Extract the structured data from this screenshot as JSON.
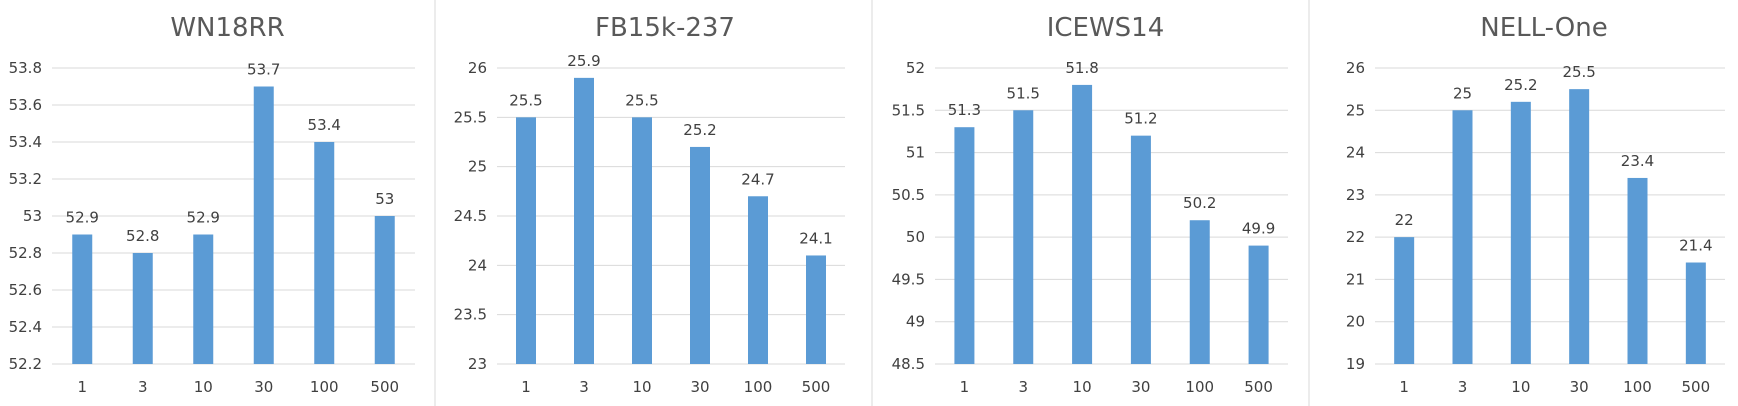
{
  "chart_data": [
    {
      "type": "bar",
      "title": "WN18RR",
      "categories": [
        "1",
        "3",
        "10",
        "30",
        "100",
        "500"
      ],
      "values": [
        52.9,
        52.8,
        52.9,
        53.7,
        53.4,
        53.0
      ],
      "value_labels": [
        "52.9",
        "52.8",
        "52.9",
        "53.7",
        "53.4",
        "53"
      ],
      "yticks": [
        "52.2",
        "52.4",
        "52.6",
        "52.8",
        "53",
        "53.2",
        "53.4",
        "53.6",
        "53.8"
      ],
      "ylim": [
        52.2,
        53.8
      ],
      "grid": true,
      "legend": "none",
      "color": "#5b9bd5"
    },
    {
      "type": "bar",
      "title": "FB15k-237",
      "categories": [
        "1",
        "3",
        "10",
        "30",
        "100",
        "500"
      ],
      "values": [
        25.5,
        25.9,
        25.5,
        25.2,
        24.7,
        24.1
      ],
      "value_labels": [
        "25.5",
        "25.9",
        "25.5",
        "25.2",
        "24.7",
        "24.1"
      ],
      "yticks": [
        "23",
        "23.5",
        "24",
        "24.5",
        "25",
        "25.5",
        "26"
      ],
      "ylim": [
        23,
        26
      ],
      "grid": true,
      "legend": "none",
      "color": "#5b9bd5"
    },
    {
      "type": "bar",
      "title": "ICEWS14",
      "categories": [
        "1",
        "3",
        "10",
        "30",
        "100",
        "500"
      ],
      "values": [
        51.3,
        51.5,
        51.8,
        51.2,
        50.2,
        49.9
      ],
      "value_labels": [
        "51.3",
        "51.5",
        "51.8",
        "51.2",
        "50.2",
        "49.9"
      ],
      "yticks": [
        "48.5",
        "49",
        "49.5",
        "50",
        "50.5",
        "51",
        "51.5",
        "52"
      ],
      "ylim": [
        48.5,
        52
      ],
      "grid": true,
      "legend": "none",
      "color": "#5b9bd5"
    },
    {
      "type": "bar",
      "title": "NELL-One",
      "categories": [
        "1",
        "3",
        "10",
        "30",
        "100",
        "500"
      ],
      "values": [
        22,
        25,
        25.2,
        25.5,
        23.4,
        21.4
      ],
      "value_labels": [
        "22",
        "25",
        "25.2",
        "25.5",
        "23.4",
        "21.4"
      ],
      "yticks": [
        "19",
        "20",
        "21",
        "22",
        "23",
        "24",
        "25",
        "26"
      ],
      "ylim": [
        19,
        26
      ],
      "grid": true,
      "legend": "none",
      "color": "#5b9bd5"
    }
  ]
}
